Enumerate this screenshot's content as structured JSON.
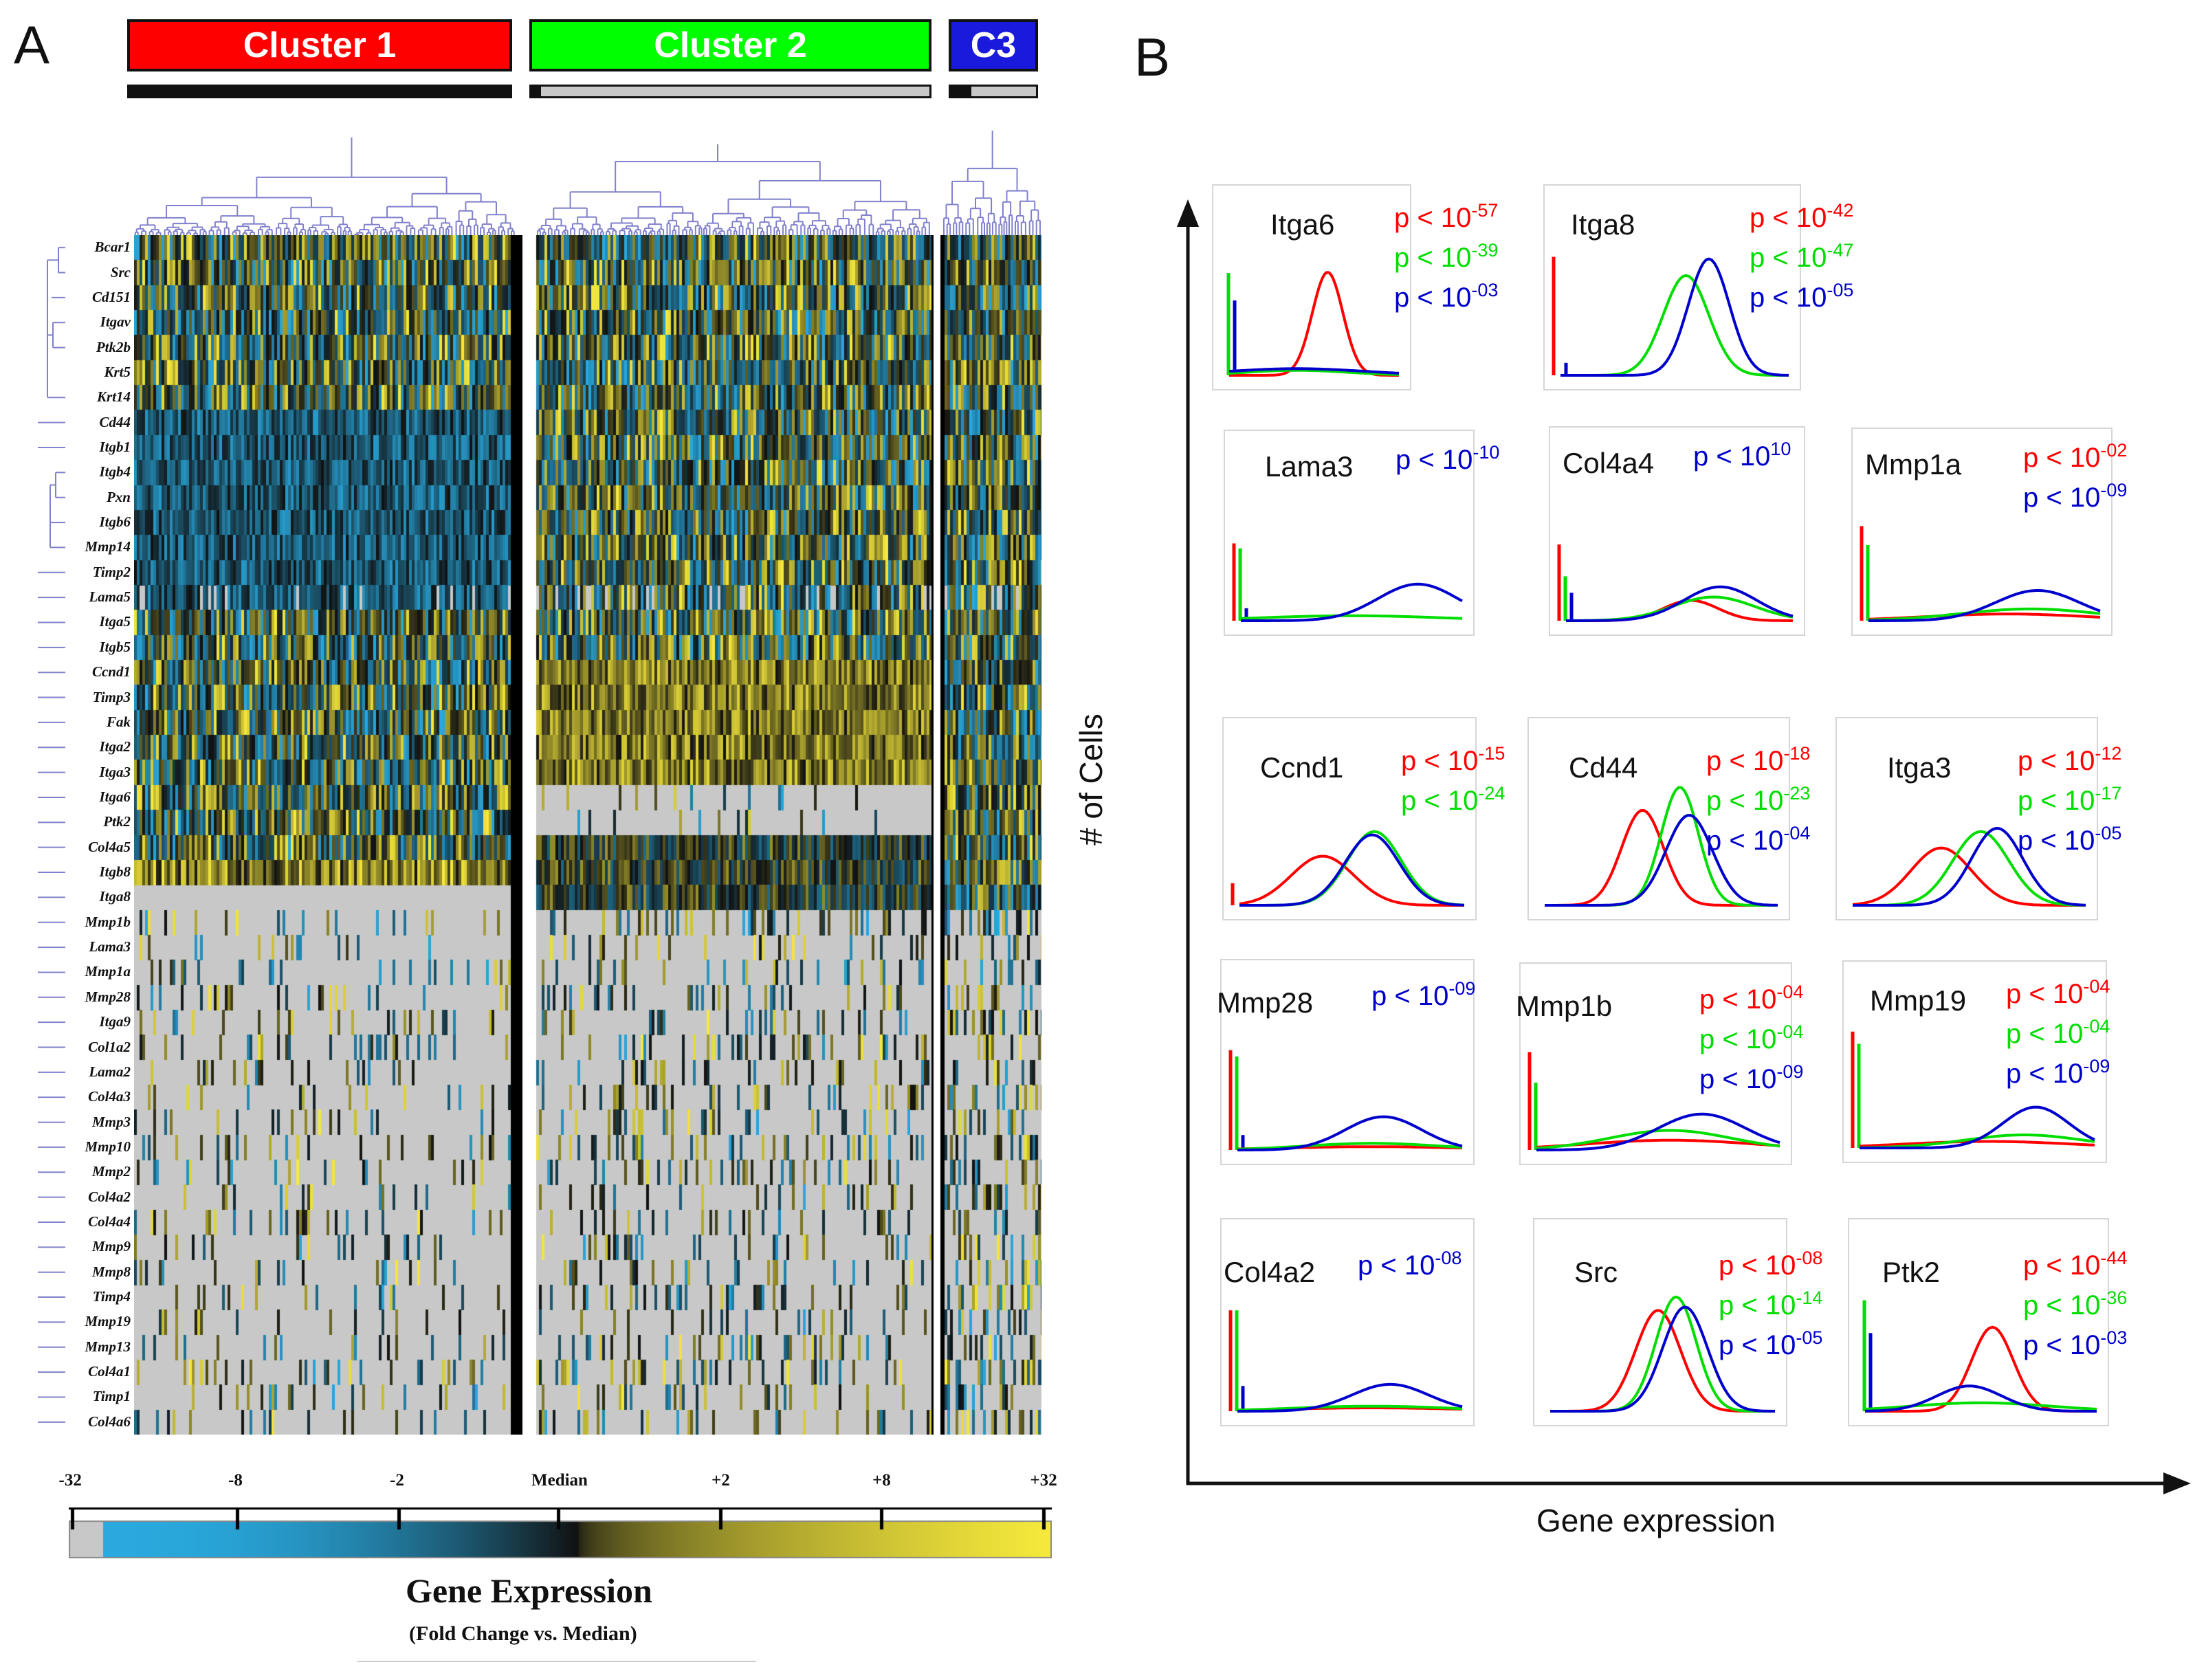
{
  "panel_a": {
    "letter": "A",
    "clusters": [
      {
        "label": "Cluster 1",
        "color": "#ff0000"
      },
      {
        "label": "Cluster 2",
        "color": "#00ff00"
      },
      {
        "label": "C3",
        "color": "#0000ff"
      }
    ],
    "colorbar": {
      "ticks": [
        "-32",
        "-8",
        "-2",
        "Median",
        "+2",
        "+8",
        "+32"
      ],
      "title": "Gene Expression",
      "subtitle": "(Fold Change vs. Median)"
    }
  },
  "panel_b": {
    "letter": "B",
    "ylabel": "# of Cells",
    "xlabel": "Gene expression"
  },
  "chart_data": [
    {
      "type": "heatmap",
      "title": "Gene Expression (Fold Change vs. Median)",
      "columns": [
        "Cluster 1",
        "Cluster 2",
        "C3"
      ],
      "rows": [
        "Bcar1",
        "Src",
        "Cd151",
        "Itgav",
        "Ptk2b",
        "Krt5",
        "Krt14",
        "Cd44",
        "Itgb1",
        "Itgb4",
        "Pxn",
        "Itgb6",
        "Mmp14",
        "Timp2",
        "Lama5",
        "Itga5",
        "Itgb5",
        "Ccnd1",
        "Timp3",
        "Fak",
        "Itga2",
        "Itga3",
        "Itga6",
        "Ptk2",
        "Col4a5",
        "Itgb8",
        "Itga8",
        "Mmp1b",
        "Lama3",
        "Mmp1a",
        "Mmp28",
        "Itga9",
        "Col1a2",
        "Lama2",
        "Col4a3",
        "Mmp3",
        "Mmp10",
        "Mmp2",
        "Col4a2",
        "Col4a4",
        "Mmp9",
        "Mmp8",
        "Timp4",
        "Mmp19",
        "Mmp13",
        "Col4a1",
        "Timp1",
        "Col4a6"
      ],
      "color_scale": {
        "ticks": [
          "-32",
          "-8",
          "-2",
          "Median",
          "+2",
          "+8",
          "+32"
        ],
        "low_color": "#29a9de",
        "mid_color": "#111111",
        "high_color": "#f7ea3c",
        "missing_color": "#c8c8c8"
      }
    },
    {
      "type": "line",
      "xlabel": "Gene expression",
      "ylabel": "# of Cells",
      "series_colors": {
        "cluster1": "#ff0000",
        "cluster2": "#00dd00",
        "c3": "#0000cc"
      },
      "panels": [
        {
          "gene": "Itga6",
          "pvalues": [
            {
              "color": "#ff0000",
              "text": "p < 10",
              "exp": "-57"
            },
            {
              "color": "#00dd00",
              "text": "p < 10",
              "exp": "-39"
            },
            {
              "color": "#0000cc",
              "text": "p < 10",
              "exp": "-03"
            }
          ],
          "spikes": {
            "red": 0.0,
            "green": 0.82,
            "blue": 0.6
          },
          "curves": [
            {
              "color": "#ff0000",
              "mean": 0.58,
              "sd": 0.09,
              "amp": 0.62
            },
            {
              "color": "#00dd00",
              "mean": 0.4,
              "sd": 0.3,
              "amp": 0.03
            },
            {
              "color": "#0000cc",
              "mean": 0.4,
              "sd": 0.4,
              "amp": 0.04
            }
          ]
        },
        {
          "gene": "Itga8",
          "pvalues": [
            {
              "color": "#ff0000",
              "text": "p < 10",
              "exp": "-42"
            },
            {
              "color": "#00dd00",
              "text": "p < 10",
              "exp": "-47"
            },
            {
              "color": "#0000cc",
              "text": "p < 10",
              "exp": "-05"
            }
          ],
          "spikes": {
            "red": 0.95,
            "green": 0.0,
            "blue": 0.1
          },
          "curves": [
            {
              "color": "#00dd00",
              "mean": 0.55,
              "sd": 0.1,
              "amp": 0.6
            },
            {
              "color": "#0000cc",
              "mean": 0.65,
              "sd": 0.09,
              "amp": 0.7
            }
          ]
        },
        {
          "gene": "Lama3",
          "pvalues": [
            {
              "color": "#0000cc",
              "text": "p < 10",
              "exp": "-10"
            }
          ],
          "spikes": {
            "red": 0.62,
            "green": 0.58,
            "blue": 0.1
          },
          "curves": [
            {
              "color": "#00dd00",
              "mean": 0.5,
              "sd": 0.4,
              "amp": 0.03
            },
            {
              "color": "#0000cc",
              "mean": 0.8,
              "sd": 0.18,
              "amp": 0.22
            }
          ]
        },
        {
          "gene": "Col4a4",
          "pvalues": [
            {
              "color": "#0000cc",
              "text": "p < 10",
              "exp": "10"
            }
          ],
          "spikes": {
            "red": 0.6,
            "green": 0.35,
            "blue": 0.22
          },
          "curves": [
            {
              "color": "#ff0000",
              "mean": 0.55,
              "sd": 0.12,
              "amp": 0.12
            },
            {
              "color": "#00dd00",
              "mean": 0.65,
              "sd": 0.18,
              "amp": 0.14
            },
            {
              "color": "#0000cc",
              "mean": 0.68,
              "sd": 0.16,
              "amp": 0.2
            }
          ]
        },
        {
          "gene": "Mmp1a",
          "pvalues": [
            {
              "color": "#ff0000",
              "text": "p < 10",
              "exp": "-02"
            },
            {
              "color": "#0000cc",
              "text": "p < 10",
              "exp": "-09"
            }
          ],
          "spikes": {
            "red": 0.75,
            "green": 0.6,
            "blue": 0.0
          },
          "curves": [
            {
              "color": "#ff0000",
              "mean": 0.6,
              "sd": 0.35,
              "amp": 0.04
            },
            {
              "color": "#00dd00",
              "mean": 0.7,
              "sd": 0.3,
              "amp": 0.07
            },
            {
              "color": "#0000cc",
              "mean": 0.73,
              "sd": 0.18,
              "amp": 0.18
            }
          ]
        },
        {
          "gene": "Ccnd1",
          "pvalues": [
            {
              "color": "#ff0000",
              "text": "p < 10",
              "exp": "-15"
            },
            {
              "color": "#00dd00",
              "text": "p < 10",
              "exp": "-24"
            }
          ],
          "spikes": {
            "red": 0.18,
            "green": 0.0,
            "blue": 0.0
          },
          "curves": [
            {
              "color": "#ff0000",
              "mean": 0.37,
              "sd": 0.14,
              "amp": 0.3
            },
            {
              "color": "#00dd00",
              "mean": 0.6,
              "sd": 0.12,
              "amp": 0.45
            },
            {
              "color": "#0000cc",
              "mean": 0.59,
              "sd": 0.12,
              "amp": 0.43
            }
          ]
        },
        {
          "gene": "Cd44",
          "pvalues": [
            {
              "color": "#ff0000",
              "text": "p < 10",
              "exp": "-18"
            },
            {
              "color": "#00dd00",
              "text": "p < 10",
              "exp": "-23"
            },
            {
              "color": "#0000cc",
              "text": "p < 10",
              "exp": "-04"
            }
          ],
          "spikes": {
            "red": 0.0,
            "green": 0.0,
            "blue": 0.0
          },
          "curves": [
            {
              "color": "#ff0000",
              "mean": 0.42,
              "sd": 0.09,
              "amp": 0.58
            },
            {
              "color": "#00dd00",
              "mean": 0.58,
              "sd": 0.08,
              "amp": 0.72
            },
            {
              "color": "#0000cc",
              "mean": 0.62,
              "sd": 0.1,
              "amp": 0.55
            }
          ]
        },
        {
          "gene": "Itga3",
          "pvalues": [
            {
              "color": "#ff0000",
              "text": "p < 10",
              "exp": "-12"
            },
            {
              "color": "#00dd00",
              "text": "p < 10",
              "exp": "-17"
            },
            {
              "color": "#0000cc",
              "text": "p < 10",
              "exp": "-05"
            }
          ],
          "spikes": {
            "red": 0.0,
            "green": 0.0,
            "blue": 0.0
          },
          "curves": [
            {
              "color": "#ff0000",
              "mean": 0.38,
              "sd": 0.13,
              "amp": 0.35
            },
            {
              "color": "#00dd00",
              "mean": 0.55,
              "sd": 0.12,
              "amp": 0.45
            },
            {
              "color": "#0000cc",
              "mean": 0.62,
              "sd": 0.11,
              "amp": 0.47
            }
          ]
        },
        {
          "gene": "Mmp28",
          "pvalues": [
            {
              "color": "#0000cc",
              "text": "p < 10",
              "exp": "-09"
            }
          ],
          "spikes": {
            "red": 0.8,
            "green": 0.75,
            "blue": 0.12
          },
          "curves": [
            {
              "color": "#ff0000",
              "mean": 0.6,
              "sd": 0.4,
              "amp": 0.02
            },
            {
              "color": "#00dd00",
              "mean": 0.6,
              "sd": 0.3,
              "amp": 0.04
            },
            {
              "color": "#0000cc",
              "mean": 0.65,
              "sd": 0.17,
              "amp": 0.2
            }
          ]
        },
        {
          "gene": "Mmp1b",
          "pvalues": [
            {
              "color": "#ff0000",
              "text": "p < 10",
              "exp": "-04"
            },
            {
              "color": "#00dd00",
              "text": "p < 10",
              "exp": "-04"
            },
            {
              "color": "#0000cc",
              "text": "p < 10",
              "exp": "-09"
            }
          ],
          "spikes": {
            "red": 0.8,
            "green": 0.55,
            "blue": 0.0
          },
          "curves": [
            {
              "color": "#ff0000",
              "mean": 0.55,
              "sd": 0.35,
              "amp": 0.06
            },
            {
              "color": "#00dd00",
              "mean": 0.55,
              "sd": 0.25,
              "amp": 0.12
            },
            {
              "color": "#0000cc",
              "mean": 0.68,
              "sd": 0.18,
              "amp": 0.22
            }
          ]
        },
        {
          "gene": "Mmp19",
          "pvalues": [
            {
              "color": "#ff0000",
              "text": "p < 10",
              "exp": "-04"
            },
            {
              "color": "#00dd00",
              "text": "p < 10",
              "exp": "-04"
            },
            {
              "color": "#0000cc",
              "text": "p < 10",
              "exp": "-09"
            }
          ],
          "spikes": {
            "red": 0.95,
            "green": 0.85,
            "blue": 0.0
          },
          "curves": [
            {
              "color": "#ff0000",
              "mean": 0.55,
              "sd": 0.35,
              "amp": 0.04
            },
            {
              "color": "#00dd00",
              "mean": 0.7,
              "sd": 0.25,
              "amp": 0.08
            },
            {
              "color": "#0000cc",
              "mean": 0.75,
              "sd": 0.14,
              "amp": 0.25
            }
          ]
        },
        {
          "gene": "Col4a2",
          "pvalues": [
            {
              "color": "#0000cc",
              "text": "p < 10",
              "exp": "-08"
            }
          ],
          "spikes": {
            "red": 0.8,
            "green": 0.8,
            "blue": 0.2
          },
          "curves": [
            {
              "color": "#ff0000",
              "mean": 0.6,
              "sd": 0.4,
              "amp": 0.02
            },
            {
              "color": "#00dd00",
              "mean": 0.6,
              "sd": 0.35,
              "amp": 0.03
            },
            {
              "color": "#0000cc",
              "mean": 0.68,
              "sd": 0.17,
              "amp": 0.16
            }
          ]
        },
        {
          "gene": "Src",
          "pvalues": [
            {
              "color": "#ff0000",
              "text": "p < 10",
              "exp": "-08"
            },
            {
              "color": "#00dd00",
              "text": "p < 10",
              "exp": "-14"
            },
            {
              "color": "#0000cc",
              "text": "p < 10",
              "exp": "-05"
            }
          ],
          "spikes": {
            "red": 0.0,
            "green": 0.0,
            "blue": 0.0
          },
          "curves": [
            {
              "color": "#ff0000",
              "mean": 0.48,
              "sd": 0.1,
              "amp": 0.6
            },
            {
              "color": "#00dd00",
              "mean": 0.56,
              "sd": 0.09,
              "amp": 0.68
            },
            {
              "color": "#0000cc",
              "mean": 0.6,
              "sd": 0.1,
              "amp": 0.62
            }
          ]
        },
        {
          "gene": "Ptk2",
          "pvalues": [
            {
              "color": "#ff0000",
              "text": "p < 10",
              "exp": "-44"
            },
            {
              "color": "#00dd00",
              "text": "p < 10",
              "exp": "-36"
            },
            {
              "color": "#0000cc",
              "text": "p < 10",
              "exp": "-03"
            }
          ],
          "spikes": {
            "red": 0.0,
            "green": 0.88,
            "blue": 0.62
          },
          "curves": [
            {
              "color": "#ff0000",
              "mean": 0.55,
              "sd": 0.09,
              "amp": 0.5
            },
            {
              "color": "#00dd00",
              "mean": 0.5,
              "sd": 0.3,
              "amp": 0.05
            },
            {
              "color": "#0000cc",
              "mean": 0.45,
              "sd": 0.14,
              "amp": 0.15
            }
          ]
        }
      ]
    }
  ]
}
